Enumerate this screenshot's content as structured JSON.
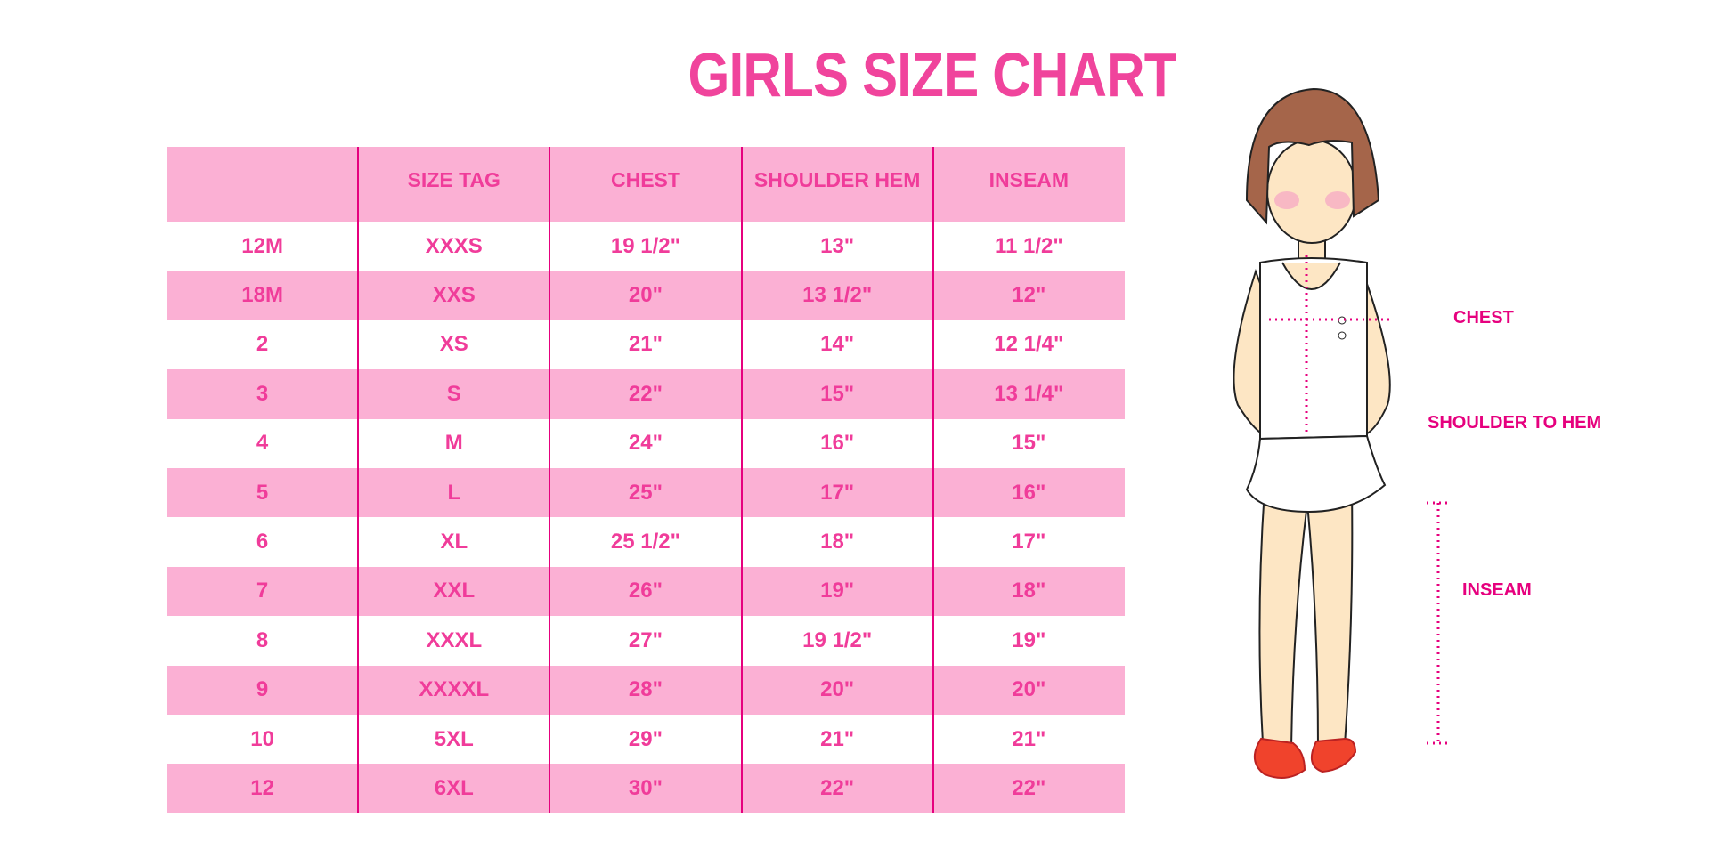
{
  "title": "GIRLS SIZE CHART",
  "colors": {
    "accent": "#f03c9a",
    "row_pink": "#fbb0d4",
    "divider": "#e6007e"
  },
  "chart_data": {
    "type": "table",
    "title": "GIRLS SIZE CHART",
    "columns": [
      "",
      "SIZE TAG",
      "CHEST",
      "SHOULDER HEM",
      "INSEAM"
    ],
    "rows": [
      [
        "12M",
        "XXXS",
        "19 1/2\"",
        "13\"",
        "11 1/2\""
      ],
      [
        "18M",
        "XXS",
        "20\"",
        "13 1/2\"",
        "12\""
      ],
      [
        "2",
        "XS",
        "21\"",
        "14\"",
        "12 1/4\""
      ],
      [
        "3",
        "S",
        "22\"",
        "15\"",
        "13 1/4\""
      ],
      [
        "4",
        "M",
        "24\"",
        "16\"",
        "15\""
      ],
      [
        "5",
        "L",
        "25\"",
        "17\"",
        "16\""
      ],
      [
        "6",
        "XL",
        "25 1/2\"",
        "18\"",
        "17\""
      ],
      [
        "7",
        "XXL",
        "26\"",
        "19\"",
        "18\""
      ],
      [
        "8",
        "XXXL",
        "27\"",
        "19 1/2\"",
        "19\""
      ],
      [
        "9",
        "XXXXL",
        "28\"",
        "20\"",
        "20\""
      ],
      [
        "10",
        "5XL",
        "29\"",
        "21\"",
        "21\""
      ],
      [
        "12",
        "6XL",
        "30\"",
        "22\"",
        "22\""
      ]
    ]
  },
  "figure": {
    "chest_label": "CHEST",
    "shoulder_label": "SHOULDER TO HEM",
    "inseam_label": "INSEAM"
  }
}
